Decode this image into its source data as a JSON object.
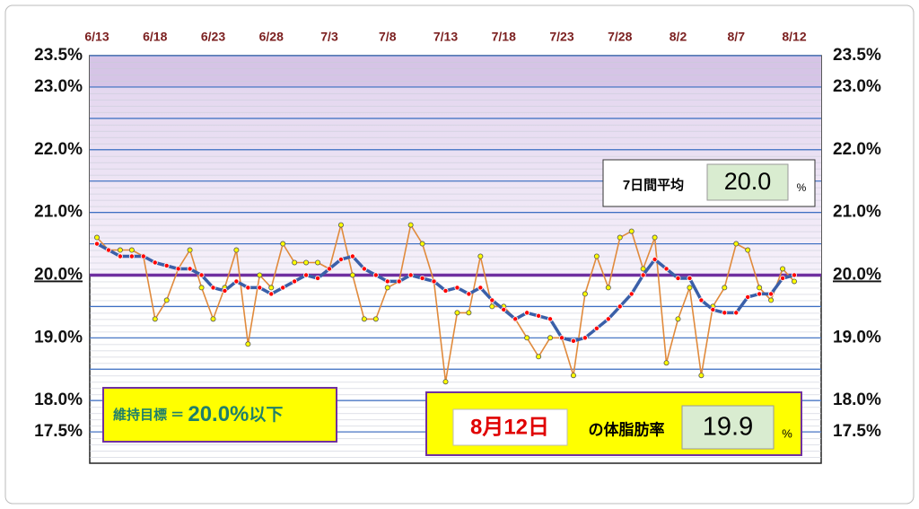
{
  "chart_data": {
    "type": "line",
    "categories": [
      "6/13",
      null,
      null,
      null,
      null,
      "6/18",
      null,
      null,
      null,
      null,
      "6/23",
      null,
      null,
      null,
      null,
      "6/28",
      null,
      null,
      null,
      null,
      "7/3",
      null,
      null,
      null,
      null,
      "7/8",
      null,
      null,
      null,
      null,
      "7/13",
      null,
      null,
      null,
      null,
      "7/18",
      null,
      null,
      null,
      null,
      "7/23",
      null,
      null,
      null,
      null,
      "7/28",
      null,
      null,
      null,
      null,
      "8/2",
      null,
      null,
      null,
      null,
      "8/7",
      null,
      null,
      null,
      null,
      "8/12"
    ],
    "series": [
      {
        "color": "#e08a3c",
        "marker_color": "#ffff00",
        "values": [
          20.6,
          20.4,
          20.4,
          20.4,
          20.3,
          19.3,
          19.6,
          20.1,
          20.4,
          19.8,
          19.3,
          19.8,
          20.4,
          18.9,
          20.0,
          19.8,
          20.5,
          20.2,
          20.2,
          20.2,
          20.1,
          20.8,
          20.0,
          19.3,
          19.3,
          19.8,
          19.9,
          20.8,
          20.5,
          19.9,
          18.3,
          19.4,
          19.4,
          20.3,
          19.5,
          19.5,
          19.3,
          19.0,
          18.7,
          19.0,
          19.0,
          18.4,
          19.7,
          20.3,
          19.8,
          20.6,
          20.7,
          20.1,
          20.6,
          18.6,
          19.3,
          19.8,
          18.4,
          19.5,
          19.8,
          20.5,
          20.4,
          19.8,
          19.6,
          20.1,
          19.9
        ]
      },
      {
        "color": "#3a5fa8",
        "marker_color": "#ff0000",
        "values": [
          20.5,
          20.4,
          20.3,
          20.3,
          20.3,
          20.2,
          20.15,
          20.1,
          20.1,
          20.0,
          19.8,
          19.75,
          19.9,
          19.8,
          19.8,
          19.7,
          19.8,
          19.9,
          20.0,
          19.95,
          20.1,
          20.25,
          20.3,
          20.1,
          20.0,
          19.9,
          19.9,
          20.0,
          19.95,
          19.9,
          19.75,
          19.8,
          19.7,
          19.8,
          19.6,
          19.45,
          19.3,
          19.4,
          19.35,
          19.3,
          19.0,
          18.95,
          19.0,
          19.15,
          19.3,
          19.5,
          19.7,
          20.0,
          20.25,
          20.1,
          19.95,
          19.95,
          19.6,
          19.45,
          19.4,
          19.4,
          19.65,
          19.7,
          19.7,
          19.95,
          20.0
        ]
      }
    ],
    "ylim": [
      17,
      23.5
    ],
    "yticks": [
      {
        "value": 23.5,
        "label": "23.5%"
      },
      {
        "value": 23.0,
        "label": "23.0%"
      },
      {
        "value": 22.0,
        "label": "22.0%"
      },
      {
        "value": 21.0,
        "label": "21.0%"
      },
      {
        "value": 20.0,
        "label": "20.0%"
      },
      {
        "value": 19.0,
        "label": "19.0%"
      },
      {
        "value": 18.0,
        "label": "18.0%"
      },
      {
        "value": 17.5,
        "label": "17.5%"
      }
    ],
    "ygrid": [
      17.5,
      18,
      18.5,
      19,
      19.5,
      20,
      20.5,
      21,
      21.5,
      22,
      22.5,
      23,
      23.5
    ],
    "target": 20,
    "target_color": "#7030a0",
    "annotations": {
      "avg_label": "7日間平均",
      "avg_value": "20.0",
      "avg_unit": "%",
      "goal_prefix": "維持目標 ＝ ",
      "goal_value": "20.0%",
      "goal_suffix": "以下",
      "date": "8月12日",
      "date_suffix": "の体脂肪率",
      "today_value": "19.9",
      "today_unit": "%"
    }
  }
}
